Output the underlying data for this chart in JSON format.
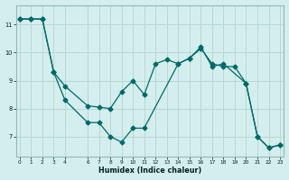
{
  "xlabel": "Humidex (Indice chaleur)",
  "bg_color": "#d4eeed",
  "grid_color": "#b8d8d4",
  "line_color": "#006868",
  "line1_x": [
    0,
    1,
    2,
    3,
    4,
    6,
    7,
    8,
    9,
    10,
    11,
    14,
    15,
    16,
    17,
    18,
    20,
    21,
    22,
    23
  ],
  "line1_y": [
    11.2,
    11.2,
    11.2,
    9.3,
    8.3,
    7.5,
    7.5,
    7.0,
    6.8,
    7.3,
    7.3,
    9.6,
    9.8,
    10.2,
    9.5,
    9.6,
    8.9,
    7.0,
    6.6,
    6.7
  ],
  "line2_x": [
    0,
    1,
    2,
    3,
    4,
    6,
    7,
    8,
    9,
    10,
    11,
    12,
    13,
    14,
    15,
    16,
    17,
    18,
    19,
    20,
    21,
    22,
    23
  ],
  "line2_y": [
    11.2,
    11.2,
    11.2,
    9.3,
    8.8,
    8.1,
    8.05,
    8.0,
    8.6,
    9.0,
    8.5,
    9.6,
    9.75,
    9.6,
    9.8,
    10.15,
    9.6,
    9.5,
    9.5,
    8.9,
    7.0,
    6.6,
    6.7
  ],
  "xlim": [
    -0.3,
    23.3
  ],
  "ylim": [
    6.3,
    11.7
  ],
  "yticks": [
    7,
    8,
    9,
    10,
    11
  ],
  "xticks": [
    0,
    1,
    2,
    3,
    4,
    6,
    7,
    8,
    9,
    10,
    11,
    12,
    13,
    14,
    15,
    16,
    17,
    18,
    19,
    20,
    21,
    22,
    23
  ]
}
